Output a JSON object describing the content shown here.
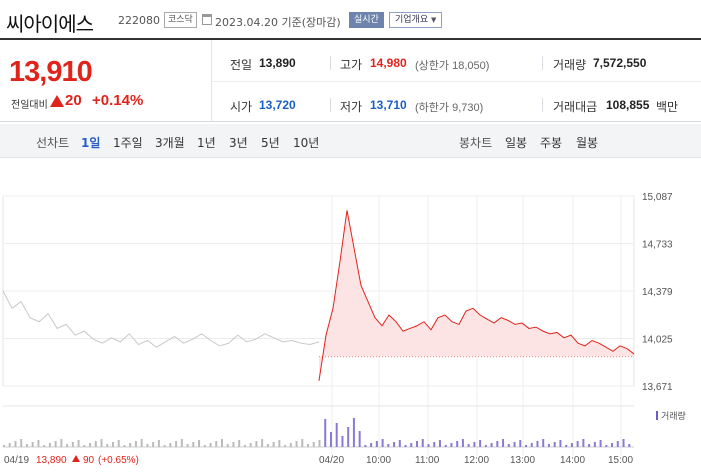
{
  "header": {
    "name": "씨아이에스",
    "code": "222080",
    "market": "코스닥",
    "date": "2023.04.20 기준(장마감)",
    "realtime": "실시간",
    "company_info": "기업개요"
  },
  "summary": {
    "price": "13,910",
    "diff_label": "전일대비",
    "diff_value": "20",
    "diff_rate": "+0.14%",
    "prev_label": "전일",
    "prev_value": "13,890",
    "open_label": "시가",
    "open_value": "13,720",
    "high_label": "고가",
    "high_value": "14,980",
    "upper_limit": "(상한가 18,050)",
    "low_label": "저가",
    "low_value": "13,710",
    "lower_limit": "(하한가 9,730)",
    "volume_label": "거래량",
    "volume_value": "7,572,550",
    "amount_label": "거래대금",
    "amount_value": "108,855",
    "amount_unit": "백만"
  },
  "tabs": {
    "line_chart": "선차트",
    "periods": [
      "1일",
      "1주일",
      "3개월",
      "1년",
      "3년",
      "5년",
      "10년"
    ],
    "active_period": "1일",
    "candle_chart": "봉차트",
    "candles": [
      "일봉",
      "주봉",
      "월봉"
    ]
  },
  "colors": {
    "up": "#e0241b",
    "down": "#1a5fc8",
    "fill": "#fde4e4",
    "prev_line": "#c8c8c8"
  },
  "chart_data": {
    "type": "line",
    "y_ticks": [
      "15,087",
      "14,733",
      "14,379",
      "14,025",
      "13,671"
    ],
    "ylim": [
      13671,
      15087
    ],
    "x_ticks": [
      "04/20",
      "10:00",
      "11:00",
      "12:00",
      "13:00",
      "14:00",
      "15:00"
    ],
    "prev_day_label": "04/19",
    "prev_day_info": "13,890",
    "prev_day_change": "90",
    "prev_day_rate": "(+0.65%)",
    "volume_legend": "거래량",
    "reference_price": 13890,
    "prev_day_series": [
      14380,
      14250,
      14300,
      14180,
      14150,
      14210,
      14100,
      14130,
      14050,
      14080,
      14020,
      13990,
      14030,
      14000,
      14060,
      13980,
      14010,
      13960,
      14000,
      14040,
      13990,
      14020,
      14060,
      14010,
      13970,
      13990,
      14050,
      14000,
      14020,
      14060,
      14030,
      14000,
      14010,
      13990,
      13980,
      14000
    ],
    "today_series": [
      13710,
      14050,
      14250,
      14600,
      14980,
      14700,
      14420,
      14300,
      14180,
      14120,
      14200,
      14150,
      14080,
      14100,
      14120,
      14150,
      14090,
      14180,
      14200,
      14150,
      14130,
      14230,
      14250,
      14200,
      14170,
      14140,
      14180,
      14160,
      14130,
      14140,
      14100,
      14110,
      14080,
      14060,
      14070,
      14030,
      14050,
      13990,
      13970,
      14010,
      13990,
      13960,
      13930,
      13970,
      13950,
      13910
    ]
  }
}
